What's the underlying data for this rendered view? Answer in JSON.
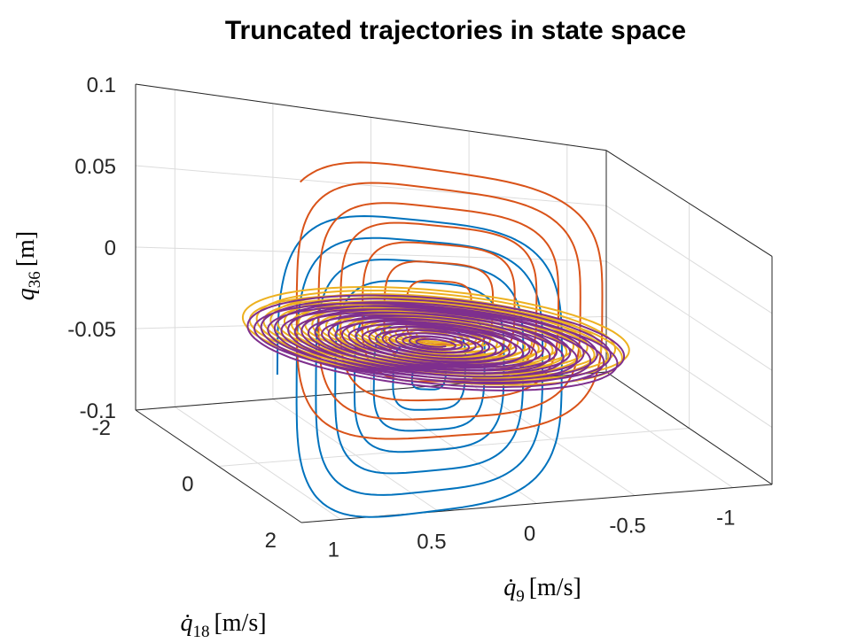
{
  "chart_data": {
    "type": "line",
    "title": "Truncated trajectories in state space",
    "axes": {
      "x": {
        "symbol": "q̇",
        "subscript": "9",
        "unit": "[m/s]",
        "ticks": [
          "1",
          "0.5",
          "0",
          "-0.5",
          "-1"
        ],
        "lim": [
          1.2,
          -1.2
        ]
      },
      "y": {
        "symbol": "q̇",
        "subscript": "18",
        "unit": "[m/s]",
        "ticks": [
          "-2",
          "0",
          "2"
        ],
        "lim": [
          -2,
          2
        ]
      },
      "z": {
        "symbol": "q",
        "subscript": "36",
        "unit": "[m]",
        "ticks": [
          "0.1",
          "0.05",
          "0",
          "-0.05",
          "-0.1"
        ],
        "lim": [
          -0.1,
          0.1
        ]
      }
    },
    "grid": true,
    "view": "3d box, perspective",
    "series": [
      {
        "color": "#0072BD",
        "plane": "x-z",
        "center_x": 0.15,
        "center_z": -0.045,
        "rx_start": 0.75,
        "rz_start": 0.11,
        "turns": 7
      },
      {
        "color": "#D95319",
        "plane": "x-z",
        "center_x": 0.05,
        "center_z": 0.0,
        "rx_start": 0.85,
        "rz_start": 0.1,
        "turns": 7
      },
      {
        "color": "#EDB120",
        "plane": "x-y",
        "center_x": 0.1,
        "center_z": -0.02,
        "rx_start": 1.7,
        "rz_start": 0.024,
        "turns": 26
      },
      {
        "color": "#7E2F8E",
        "plane": "x-y",
        "center_x": 0.1,
        "center_z": -0.025,
        "rx_start": 1.65,
        "rz_start": 0.022,
        "turns": 26
      }
    ]
  }
}
